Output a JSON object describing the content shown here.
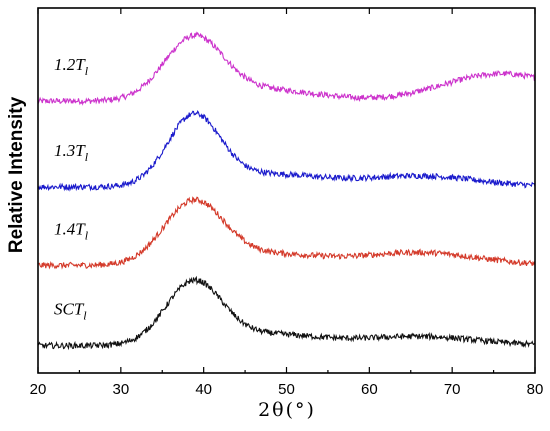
{
  "chart_data": {
    "type": "line",
    "xlabel": "2θ(°)",
    "ylabel": "Relative Intensity",
    "xlim": [
      20,
      80
    ],
    "x_ticks": [
      20,
      30,
      40,
      50,
      60,
      70,
      80
    ],
    "ylim": [
      0,
      1
    ],
    "y_ticks_shown": false,
    "grid": false,
    "legend": "inline-labels",
    "peak_position_2theta": 38.8,
    "series": [
      {
        "name_main": "1.2T",
        "name_sub": "l",
        "color": "#cc33cc",
        "baseline": 0.745,
        "peak_height": 0.17,
        "peak_width": 3.6,
        "broad_hump_center": 76,
        "broad_hump_height": 0.075,
        "noise": 0.008
      },
      {
        "name_main": "1.3T",
        "name_sub": "l",
        "color": "#1a1acc",
        "baseline": 0.51,
        "peak_height": 0.19,
        "peak_width": 3.2,
        "broad_hump_center": 66,
        "broad_hump_height": 0.03,
        "noise": 0.008
      },
      {
        "name_main": "1.4T",
        "name_sub": "l",
        "color": "#d43a2a",
        "baseline": 0.295,
        "peak_height": 0.17,
        "peak_width": 3.6,
        "broad_hump_center": 66,
        "broad_hump_height": 0.035,
        "noise": 0.008
      },
      {
        "name_main": "SCT",
        "name_sub": "l",
        "color": "#111111",
        "baseline": 0.075,
        "peak_height": 0.17,
        "peak_width": 3.4,
        "broad_hump_center": 66,
        "broad_hump_height": 0.025,
        "noise": 0.008
      }
    ]
  }
}
